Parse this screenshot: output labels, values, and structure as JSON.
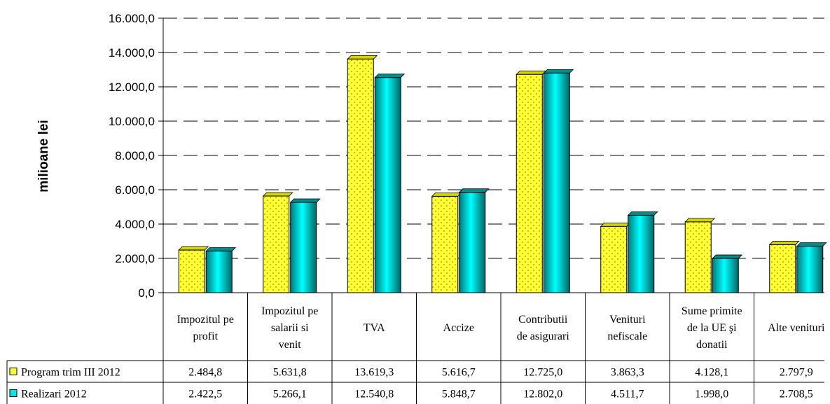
{
  "chart_data": {
    "type": "bar",
    "ylabel": "milioane lei",
    "ylim": [
      0,
      16000
    ],
    "yticks": [
      "0,0",
      "2.000,0",
      "4.000,0",
      "6.000,0",
      "8.000,0",
      "10.000,0",
      "12.000,0",
      "14.000,0",
      "16.000,0"
    ],
    "grid": "dashed horizontal",
    "categories": [
      [
        "Impozitul pe",
        "profit"
      ],
      [
        "Impozitul pe",
        "salarii si",
        "venit"
      ],
      [
        "TVA"
      ],
      [
        "Accize"
      ],
      [
        "Contributii",
        "de asigurari"
      ],
      [
        "Venituri",
        "nefiscale"
      ],
      [
        "Sume primite",
        "de la UE şi",
        "donatii"
      ],
      [
        "Alte venituri"
      ]
    ],
    "series": [
      {
        "name": "Program trim III 2012",
        "color": "#ffff33",
        "values": [
          2484.8,
          5631.8,
          13619.3,
          5616.7,
          12725.0,
          3863.3,
          4128.1,
          2797.9
        ],
        "labels": [
          "2.484,8",
          "5.631,8",
          "13.619,3",
          "5.616,7",
          "12.725,0",
          "3.863,3",
          "4.128,1",
          "2.797,9"
        ]
      },
      {
        "name": "Realizari 2012",
        "color": "#00e5e5",
        "values": [
          2422.5,
          5266.1,
          12540.8,
          5848.7,
          12802.0,
          4511.7,
          1998.0,
          2708.5
        ],
        "labels": [
          "2.422,5",
          "5.266,1",
          "12.540,8",
          "5.848,7",
          "12.802,0",
          "4.511,7",
          "1.998,0",
          "2.708,5"
        ]
      }
    ],
    "legend": "data table below chart"
  }
}
